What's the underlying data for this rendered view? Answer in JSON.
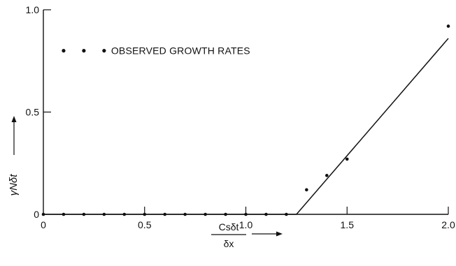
{
  "chart_data": {
    "type": "scatter",
    "xlim": [
      0,
      2.0
    ],
    "ylim": [
      0,
      1.0
    ],
    "xticks": [
      {
        "value": 0,
        "label": "0"
      },
      {
        "value": 0.5,
        "label": "0.5"
      },
      {
        "value": 1.0,
        "label": "1.0"
      },
      {
        "value": 1.5,
        "label": "1.5"
      },
      {
        "value": 2.0,
        "label": "2.0"
      }
    ],
    "yticks": [
      {
        "value": 0,
        "label": "0"
      },
      {
        "value": 0.5,
        "label": "0.5"
      },
      {
        "value": 1.0,
        "label": "1.0"
      }
    ],
    "ylabel": "γNδt",
    "xlabel": {
      "numerator": "Csδt",
      "denominator": "δx"
    },
    "grid": false,
    "legend": {
      "position": "top-left",
      "text": "OBSERVED GROWTH RATES"
    },
    "series": [
      {
        "name": "OBSERVED GROWTH RATES",
        "kind": "points",
        "x": [
          0.0,
          0.1,
          0.2,
          0.3,
          0.4,
          0.5,
          0.6,
          0.7,
          0.8,
          0.9,
          1.0,
          1.1,
          1.2,
          1.3,
          1.4,
          1.5,
          2.0
        ],
        "y": [
          0,
          0,
          0,
          0,
          0,
          0,
          0,
          0,
          0,
          0,
          0,
          0,
          0,
          0.12,
          0.19,
          0.27,
          0.92
        ]
      },
      {
        "kind": "line",
        "x": [
          0,
          1.25,
          2.0
        ],
        "y": [
          0,
          0,
          0.86
        ]
      }
    ]
  }
}
